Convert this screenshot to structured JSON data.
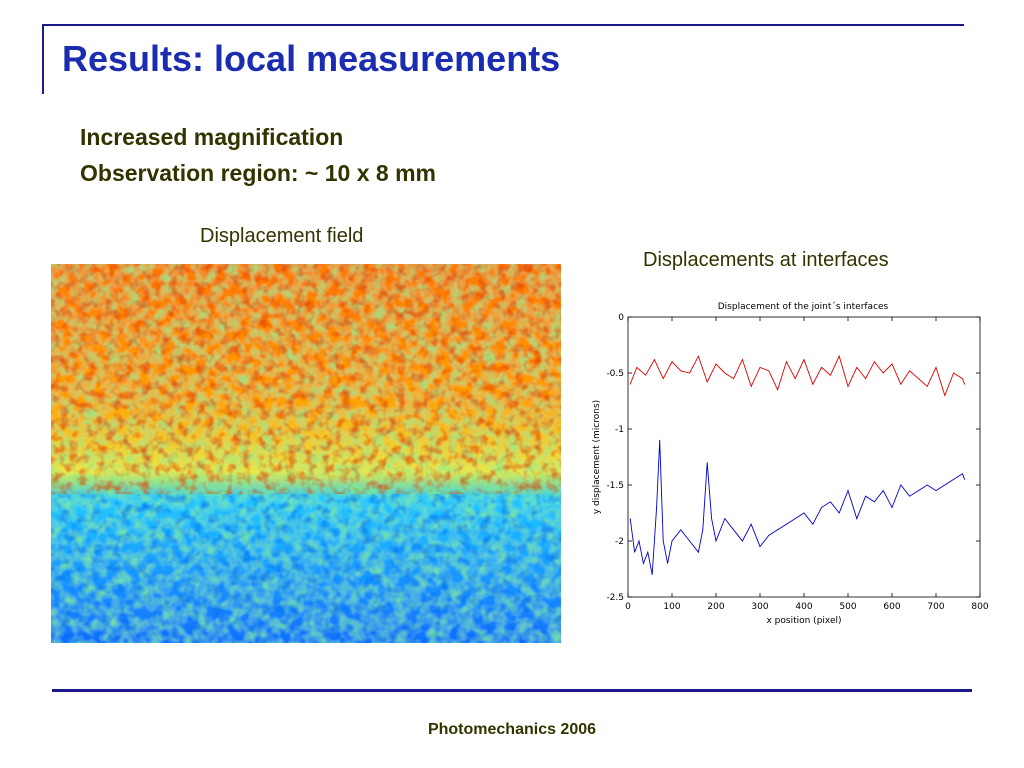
{
  "slide": {
    "title": "Results: local measurements",
    "subtitle_line1": "Increased magnification",
    "subtitle_line2": "Observation region: ~ 10 x 8 mm",
    "left_caption": "Displacement field",
    "right_caption": "Displacements at interfaces",
    "footer": "Photomechanics 2006"
  },
  "colors": {
    "title": "#1a2cb0",
    "rules": "#1a1a8c",
    "body_text": "#333300",
    "series_top": "#dd0000",
    "series_bottom": "#0000cc"
  },
  "displacement_field": {
    "colormap": "jet",
    "description_upper_region": "orange-red",
    "description_lower_region": "blue-cyan"
  },
  "chart_data": {
    "type": "line",
    "title": "Displacement of the joint´s interfaces",
    "xlabel": "x position (pixel)",
    "ylabel": "y displacement (microns)",
    "xlim": [
      0,
      800
    ],
    "ylim": [
      -2.5,
      0
    ],
    "x_ticks": [
      "0",
      "100",
      "200",
      "300",
      "400",
      "500",
      "600",
      "700",
      "800"
    ],
    "y_ticks": [
      "0",
      "-0.5",
      "-1",
      "-1.5",
      "-2",
      "-2.5"
    ],
    "grid": false,
    "series": [
      {
        "color": "#dd0000",
        "x": [
          5,
          20,
          40,
          60,
          80,
          100,
          120,
          140,
          160,
          180,
          200,
          220,
          240,
          260,
          280,
          300,
          320,
          340,
          360,
          380,
          400,
          420,
          440,
          460,
          480,
          500,
          520,
          540,
          560,
          580,
          600,
          620,
          640,
          660,
          680,
          700,
          720,
          740,
          760,
          765
        ],
        "values": [
          -0.6,
          -0.45,
          -0.52,
          -0.38,
          -0.55,
          -0.4,
          -0.48,
          -0.5,
          -0.35,
          -0.58,
          -0.42,
          -0.5,
          -0.55,
          -0.38,
          -0.62,
          -0.45,
          -0.48,
          -0.65,
          -0.4,
          -0.55,
          -0.38,
          -0.6,
          -0.45,
          -0.52,
          -0.35,
          -0.62,
          -0.45,
          -0.55,
          -0.4,
          -0.5,
          -0.42,
          -0.6,
          -0.48,
          -0.55,
          -0.62,
          -0.45,
          -0.7,
          -0.5,
          -0.55,
          -0.6
        ]
      },
      {
        "color": "#0000cc",
        "x": [
          5,
          15,
          25,
          35,
          45,
          55,
          65,
          72,
          80,
          90,
          100,
          120,
          140,
          160,
          170,
          180,
          190,
          200,
          220,
          240,
          260,
          280,
          300,
          320,
          340,
          360,
          380,
          400,
          420,
          440,
          460,
          480,
          500,
          520,
          540,
          560,
          580,
          600,
          620,
          640,
          660,
          680,
          700,
          720,
          740,
          760,
          765
        ],
        "values": [
          -1.8,
          -2.1,
          -2.0,
          -2.2,
          -2.1,
          -2.3,
          -1.7,
          -1.1,
          -2.0,
          -2.2,
          -2.0,
          -1.9,
          -2.0,
          -2.1,
          -1.9,
          -1.3,
          -1.8,
          -2.0,
          -1.8,
          -1.9,
          -2.0,
          -1.85,
          -2.05,
          -1.95,
          -1.9,
          -1.85,
          -1.8,
          -1.75,
          -1.85,
          -1.7,
          -1.65,
          -1.75,
          -1.55,
          -1.8,
          -1.6,
          -1.65,
          -1.55,
          -1.7,
          -1.5,
          -1.6,
          -1.55,
          -1.5,
          -1.55,
          -1.5,
          -1.45,
          -1.4,
          -1.45
        ]
      }
    ]
  }
}
